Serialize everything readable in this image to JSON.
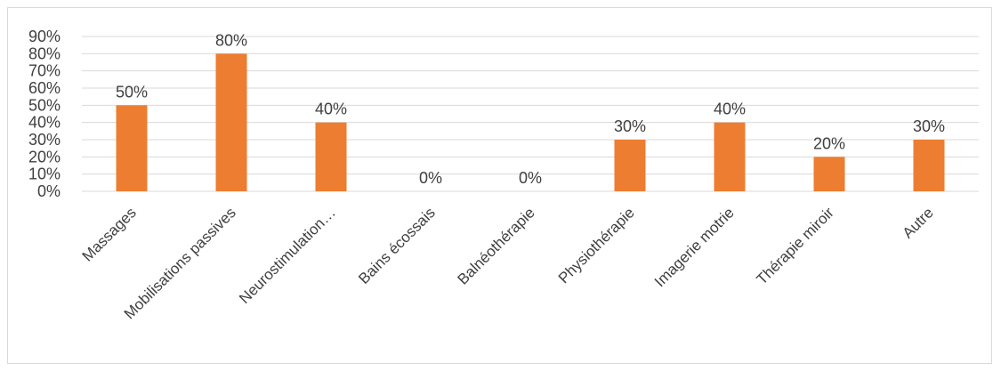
{
  "chart_data": {
    "type": "bar",
    "categories": [
      "Massages",
      "Mobilisations passives",
      "Neurostimulation…",
      "Bains écossais",
      "Balnéothérapie",
      "Physiothérapie",
      "Imagerie motrie",
      "Thérapie miroir",
      "Autre"
    ],
    "values": [
      50,
      80,
      40,
      0,
      0,
      30,
      40,
      20,
      30
    ],
    "data_labels": [
      "50%",
      "80%",
      "40%",
      "0%",
      "0%",
      "30%",
      "40%",
      "20%",
      "30%"
    ],
    "y_ticks": [
      "0%",
      "10%",
      "20%",
      "30%",
      "40%",
      "50%",
      "60%",
      "70%",
      "80%",
      "90%"
    ],
    "ylim": [
      0,
      90
    ],
    "grid": true,
    "bar_color": "#ED7D31",
    "grid_color": "#D9D9D9",
    "text_color": "#404040"
  }
}
